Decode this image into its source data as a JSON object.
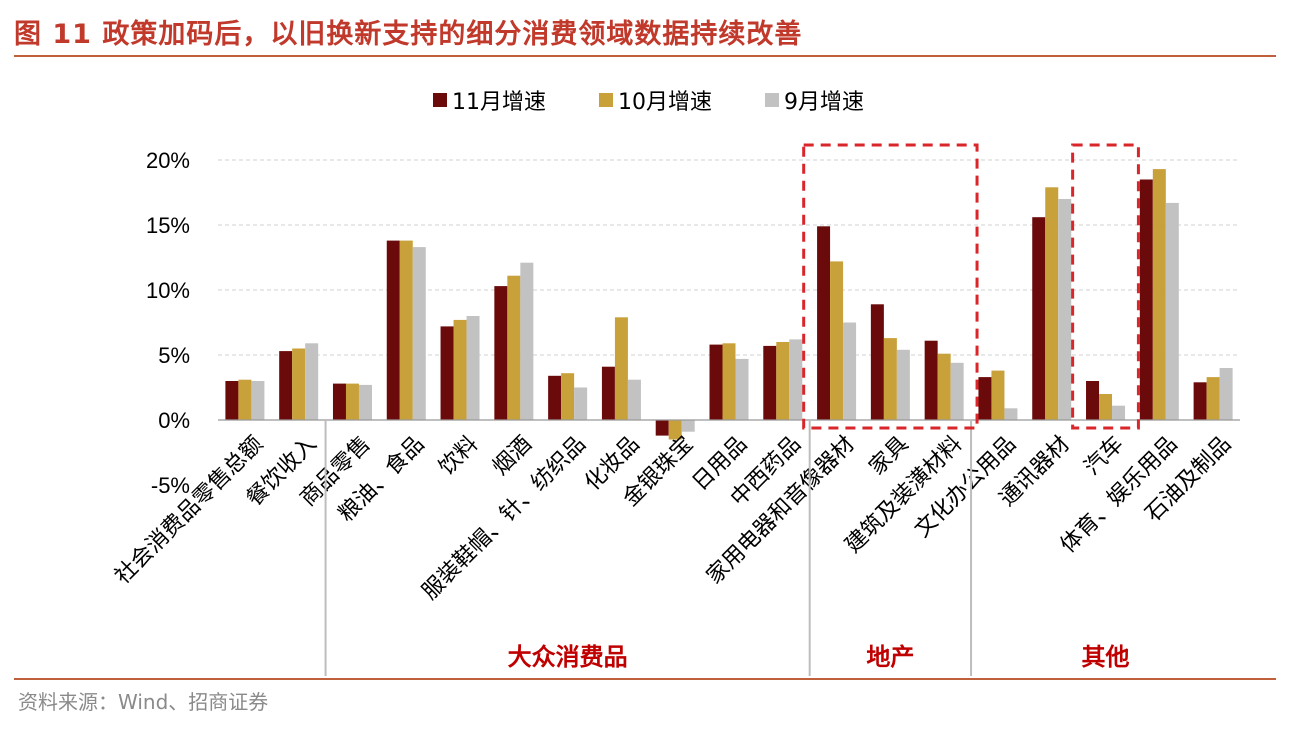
{
  "title": "图 11 政策加码后，以旧换新支持的细分消费领域数据持续改善",
  "source": "资料来源：Wind、招商证券",
  "chart_data": {
    "type": "bar",
    "categories": [
      "社会消费品零售总额",
      "餐饮收入",
      "商品零售",
      "粮油、食品",
      "饮料",
      "烟酒",
      "服装鞋帽、针、纺织品",
      "化妆品",
      "金银珠宝",
      "日用品",
      "中西药品",
      "家用电器和音像器材",
      "家具",
      "建筑及装潢材料",
      "文化办公用品",
      "通讯器材",
      "汽车",
      "体育、娱乐用品",
      "石油及制品"
    ],
    "series": [
      {
        "name": "11月增速",
        "color": "#6b0a0a",
        "values": [
          3.0,
          5.3,
          2.8,
          13.8,
          7.2,
          10.3,
          3.4,
          4.1,
          -1.2,
          5.8,
          5.7,
          14.9,
          8.9,
          6.1,
          3.3,
          15.6,
          3.0,
          18.5,
          2.9
        ]
      },
      {
        "name": "10月增速",
        "color": "#c9a13a",
        "values": [
          3.1,
          5.5,
          2.8,
          13.8,
          7.7,
          11.1,
          3.6,
          7.9,
          -1.5,
          5.9,
          6.0,
          12.2,
          6.3,
          5.1,
          3.8,
          17.9,
          2.0,
          19.3,
          3.3
        ]
      },
      {
        "name": "9月增速",
        "color": "#c2c2c2",
        "values": [
          3.0,
          5.9,
          2.7,
          13.3,
          8.0,
          12.1,
          2.5,
          3.1,
          -0.9,
          4.7,
          6.2,
          7.5,
          5.4,
          4.4,
          0.9,
          17.0,
          1.1,
          16.7,
          4.0
        ]
      }
    ],
    "yaxis_ticks": [
      "20%",
      "15%",
      "10%",
      "5%",
      "0%",
      "-5%"
    ],
    "ylim": [
      -5,
      20
    ],
    "grid": true,
    "legend_position": "top",
    "groups": [
      {
        "label": "大众消费品",
        "from": 2,
        "to": 10
      },
      {
        "label": "地产",
        "from": 11,
        "to": 13
      },
      {
        "label": "其他",
        "from": 14,
        "to": 18
      }
    ],
    "highlight_boxes": [
      {
        "from": 11,
        "to": 13
      },
      {
        "from": 16,
        "to": 16
      }
    ]
  }
}
